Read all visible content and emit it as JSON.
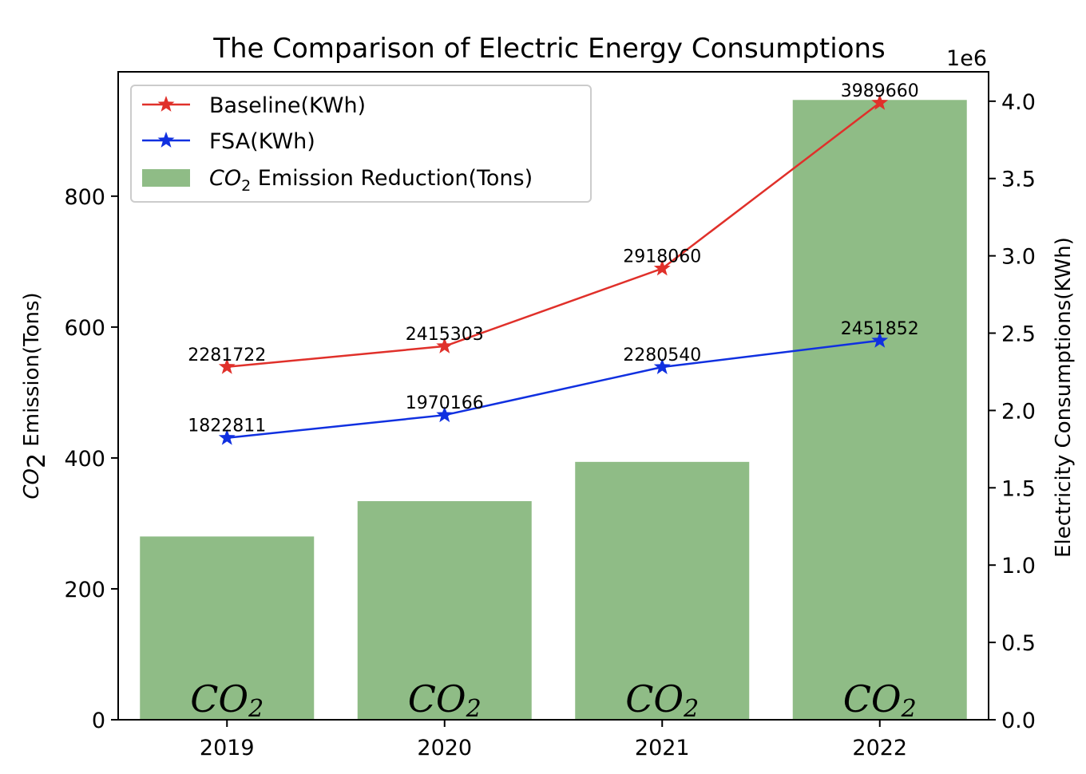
{
  "chart_data": {
    "type": "bar",
    "title": "The Comparison of Electric Energy Consumptions",
    "categories": [
      "2019",
      "2020",
      "2021",
      "2022"
    ],
    "bars": {
      "name": "CO2 Emission Reduction(Tons)",
      "name_main": "CO",
      "name_sub": "2",
      "name_rest": " Emission Reduction(Tons)",
      "values": [
        280,
        334,
        394,
        947
      ],
      "color": "#8fbc86",
      "bar_label_main": "CO",
      "bar_label_sub": "2"
    },
    "lines": [
      {
        "name": "Baseline(KWh)",
        "values": [
          2281722,
          2415303,
          2918060,
          3989660
        ],
        "labels": [
          "2281722",
          "2415303",
          "2918060",
          "3989660"
        ],
        "color": "#e0302a",
        "marker": "star"
      },
      {
        "name": "FSA(KWh)",
        "values": [
          1822811,
          1970166,
          2280540,
          2451852
        ],
        "labels": [
          "1822811",
          "1970166",
          "2280540",
          "2451852"
        ],
        "color": "#1030e0",
        "marker": "star"
      }
    ],
    "y_left": {
      "label_main": "CO",
      "label_sub": "2",
      "label_rest": " Emission(Tons)",
      "ylim": [
        0,
        990
      ],
      "ticks": [
        0,
        200,
        400,
        600,
        800
      ],
      "tick_labels": [
        "0",
        "200",
        "400",
        "600",
        "800"
      ]
    },
    "y_right": {
      "label": "Electricity Consumptions(KWh)",
      "scale_label": "1e6",
      "ylim": [
        0,
        4190000
      ],
      "ticks": [
        0,
        500000,
        1000000,
        1500000,
        2000000,
        2500000,
        3000000,
        3500000,
        4000000
      ],
      "tick_labels": [
        "0.0",
        "0.5",
        "1.0",
        "1.5",
        "2.0",
        "2.5",
        "3.0",
        "3.5",
        "4.0"
      ]
    },
    "legend": "top-left",
    "grid": false
  }
}
